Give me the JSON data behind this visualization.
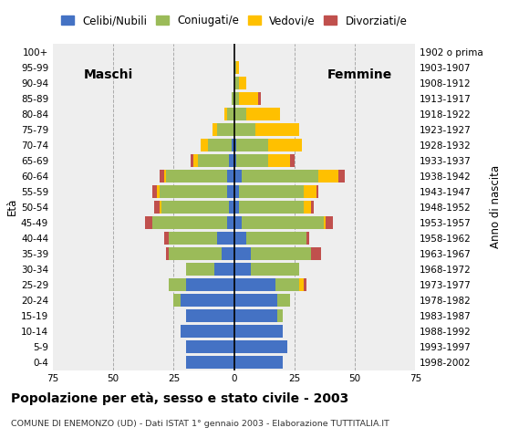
{
  "age_groups": [
    "0-4",
    "5-9",
    "10-14",
    "15-19",
    "20-24",
    "25-29",
    "30-34",
    "35-39",
    "40-44",
    "45-49",
    "50-54",
    "55-59",
    "60-64",
    "65-69",
    "70-74",
    "75-79",
    "80-84",
    "85-89",
    "90-94",
    "95-99",
    "100+"
  ],
  "birth_years": [
    "1998-2002",
    "1993-1997",
    "1988-1992",
    "1983-1987",
    "1978-1982",
    "1973-1977",
    "1968-1972",
    "1963-1967",
    "1958-1962",
    "1953-1957",
    "1948-1952",
    "1943-1947",
    "1938-1942",
    "1933-1937",
    "1928-1932",
    "1923-1927",
    "1918-1922",
    "1913-1917",
    "1908-1912",
    "1903-1907",
    "1902 o prima"
  ],
  "males": {
    "celibi": [
      20,
      20,
      22,
      20,
      22,
      20,
      8,
      5,
      7,
      3,
      2,
      3,
      3,
      2,
      1,
      0,
      0,
      0,
      0,
      0,
      0
    ],
    "coniugati": [
      0,
      0,
      0,
      0,
      3,
      7,
      12,
      22,
      20,
      31,
      28,
      28,
      25,
      13,
      10,
      7,
      3,
      1,
      0,
      0,
      0
    ],
    "vedovi": [
      0,
      0,
      0,
      0,
      0,
      0,
      0,
      0,
      0,
      0,
      1,
      1,
      1,
      2,
      3,
      2,
      1,
      0,
      0,
      0,
      0
    ],
    "divorziati": [
      0,
      0,
      0,
      0,
      0,
      0,
      0,
      1,
      2,
      3,
      2,
      2,
      2,
      1,
      0,
      0,
      0,
      0,
      0,
      0,
      0
    ]
  },
  "females": {
    "nubili": [
      20,
      22,
      20,
      18,
      18,
      17,
      7,
      7,
      5,
      3,
      2,
      2,
      3,
      1,
      1,
      0,
      0,
      0,
      0,
      0,
      0
    ],
    "coniugate": [
      0,
      0,
      0,
      2,
      5,
      10,
      20,
      25,
      25,
      34,
      27,
      27,
      32,
      13,
      13,
      9,
      5,
      2,
      2,
      1,
      0
    ],
    "vedove": [
      0,
      0,
      0,
      0,
      0,
      2,
      0,
      0,
      0,
      1,
      3,
      5,
      8,
      9,
      14,
      18,
      14,
      8,
      3,
      1,
      0
    ],
    "divorziate": [
      0,
      0,
      0,
      0,
      0,
      1,
      0,
      4,
      1,
      3,
      1,
      1,
      3,
      2,
      0,
      0,
      0,
      1,
      0,
      0,
      0
    ]
  },
  "colors": {
    "celibi": "#4472c4",
    "coniugati": "#9bbb59",
    "vedovi": "#ffc000",
    "divorziati": "#c0504d"
  },
  "xlim": 75,
  "title": "Popolazione per età, sesso e stato civile - 2003",
  "subtitle": "COMUNE DI ENEMONZO (UD) - Dati ISTAT 1° gennaio 2003 - Elaborazione TUTTITALIA.IT",
  "legend_labels": [
    "Celibi/Nubili",
    "Coniugati/e",
    "Vedovi/e",
    "Divorziati/e"
  ],
  "label_maschi": "Maschi",
  "label_femmine": "Femmine",
  "ylabel": "Età",
  "ylabel_right": "Anno di nascita",
  "bg_color": "#ffffff",
  "plot_bg_color": "#eeeeee"
}
